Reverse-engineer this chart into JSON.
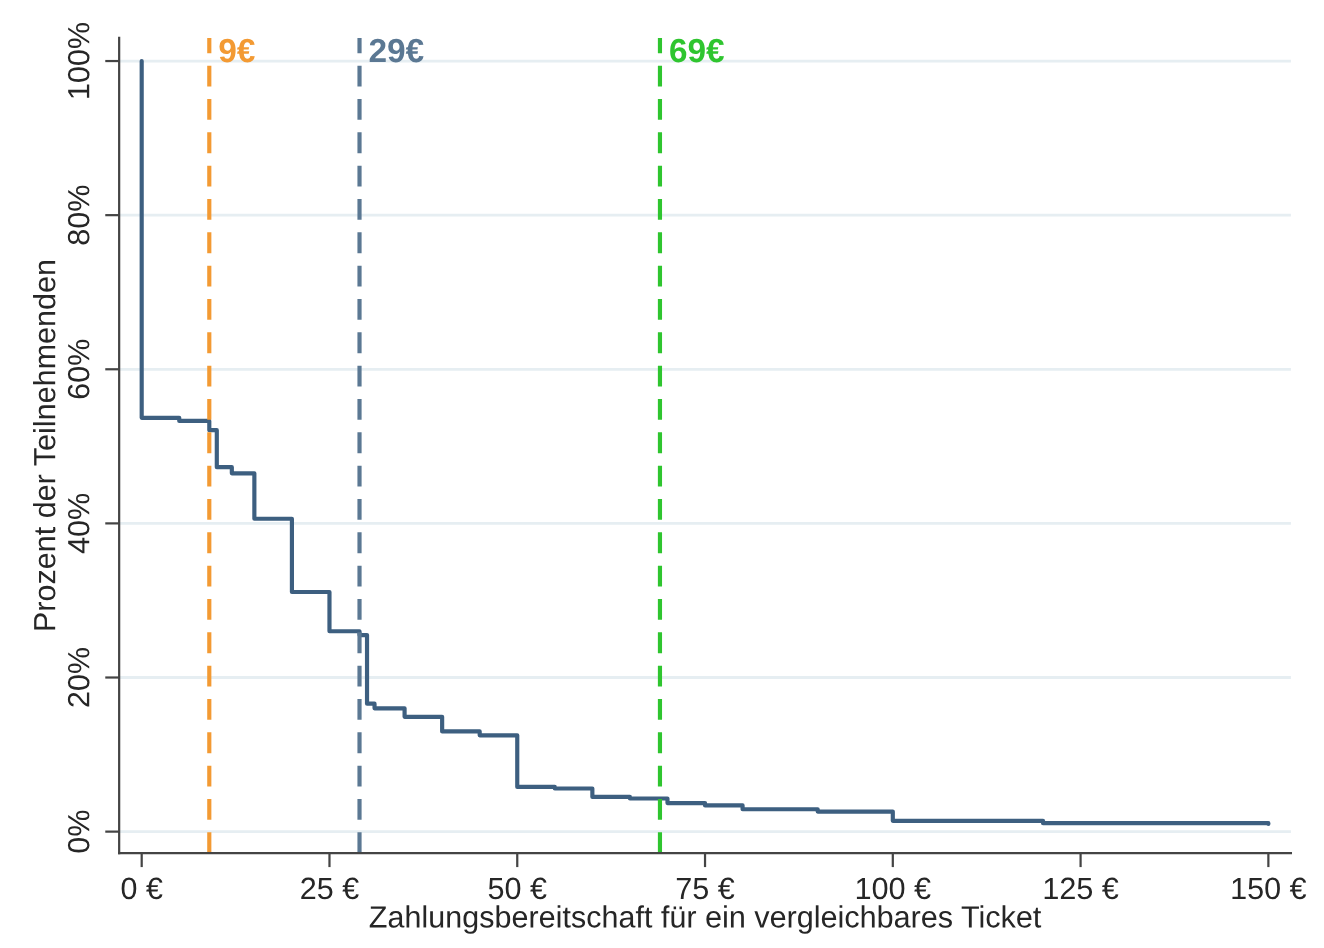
{
  "chart_data": {
    "type": "step",
    "xlabel": "Zahlungsbereitschaft für ein vergleichbares Ticket",
    "ylabel": "Prozent der Teilnehmenden",
    "series": [
      {
        "color": "#3d5f80",
        "x": [
          0,
          0,
          5,
          9,
          10,
          12,
          15,
          20,
          25,
          29,
          30,
          31,
          35,
          40,
          45,
          50,
          55,
          60,
          65,
          70,
          75,
          80,
          90,
          100,
          120,
          150
        ],
        "values": [
          100,
          53.7,
          53.3,
          52.1,
          47.3,
          46.5,
          40.6,
          31.1,
          26.0,
          25.5,
          16.6,
          16.0,
          14.9,
          13.0,
          12.5,
          5.8,
          5.6,
          4.5,
          4.3,
          3.7,
          3.4,
          2.9,
          2.6,
          1.4,
          1.1,
          1.0
        ]
      }
    ],
    "xlim": [
      -3,
      153
    ],
    "ylim": [
      -2.8,
      103
    ],
    "xticks": [
      {
        "value": 0,
        "label": "0 €"
      },
      {
        "value": 25,
        "label": "25 €"
      },
      {
        "value": 50,
        "label": "50 €"
      },
      {
        "value": 75,
        "label": "75 €"
      },
      {
        "value": 100,
        "label": "100 €"
      },
      {
        "value": 125,
        "label": "125 €"
      },
      {
        "value": 150,
        "label": "150 €"
      }
    ],
    "yticks": [
      {
        "value": 0,
        "label": "0%"
      },
      {
        "value": 20,
        "label": "20%"
      },
      {
        "value": 40,
        "label": "40%"
      },
      {
        "value": 60,
        "label": "60%"
      },
      {
        "value": 80,
        "label": "80%"
      },
      {
        "value": 100,
        "label": "100%"
      }
    ],
    "grid": "y",
    "line_style": "solid",
    "ref_lines": [
      {
        "axis": "x",
        "value": 9,
        "label": "9€",
        "color": "#f39a33",
        "line_style": "dashed"
      },
      {
        "axis": "x",
        "value": 29,
        "label": "29€",
        "color": "#5b7893",
        "line_style": "dashed"
      },
      {
        "axis": "x",
        "value": 69,
        "label": "69€",
        "color": "#2fc52f",
        "line_style": "dashed"
      }
    ]
  }
}
